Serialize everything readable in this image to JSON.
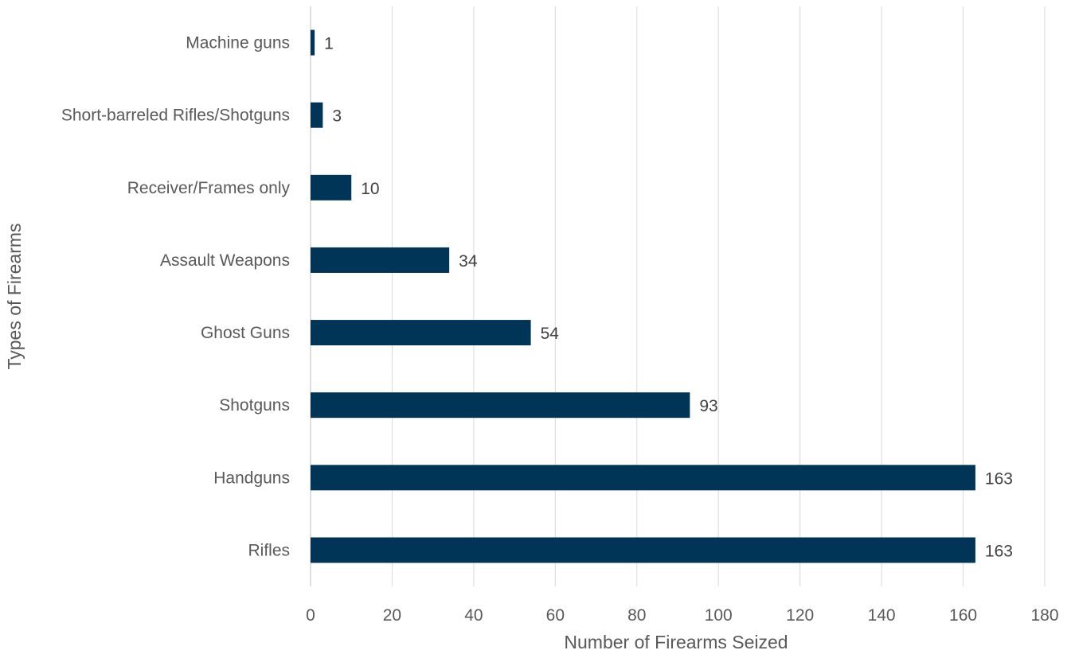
{
  "chart_data": {
    "type": "bar",
    "orientation": "horizontal",
    "title": "",
    "xlabel": "Number of Firearms Seized",
    "ylabel": "Types of Firearms",
    "categories": [
      "Machine guns",
      "Short-barreled Rifles/Shotguns",
      "Receiver/Frames only",
      "Assault Weapons",
      "Ghost Guns",
      "Shotguns",
      "Handguns",
      "Rifles"
    ],
    "values": [
      1,
      3,
      10,
      34,
      54,
      93,
      163,
      163
    ],
    "data_labels": [
      "1",
      "3",
      "10",
      "34",
      "54",
      "93",
      "163",
      "163"
    ],
    "xlim": [
      0,
      180
    ],
    "x_ticks": [
      0,
      20,
      40,
      60,
      80,
      100,
      120,
      140,
      160,
      180
    ],
    "x_tick_labels": [
      "0",
      "20",
      "40",
      "60",
      "80",
      "100",
      "120",
      "140",
      "160",
      "180"
    ],
    "grid": "vertical",
    "legend": "none",
    "bar_color": "#003558"
  }
}
